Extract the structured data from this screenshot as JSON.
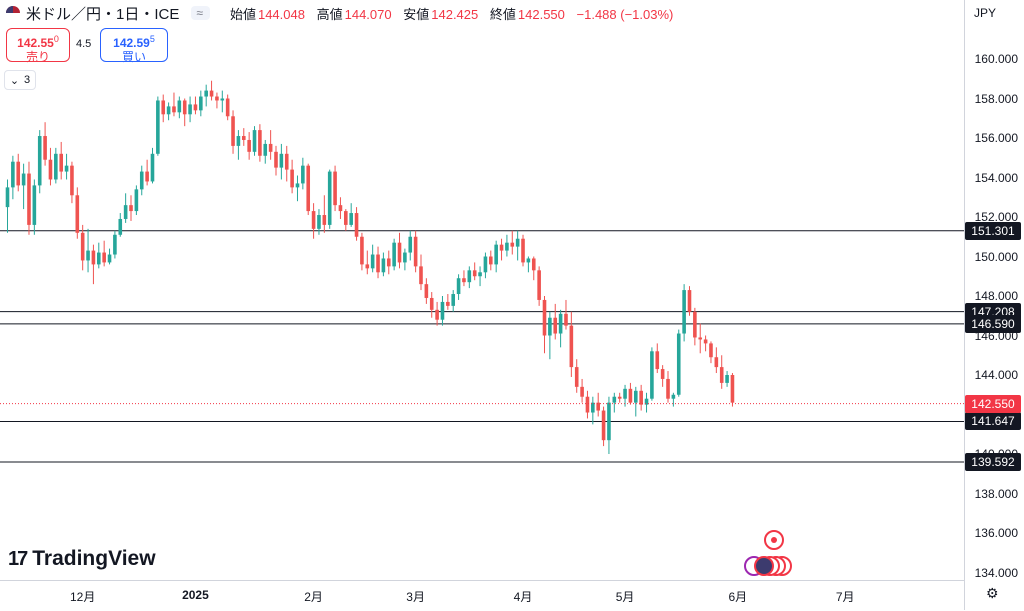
{
  "header": {
    "symbol": "米ドル／円・1日・ICE",
    "pill": "≈",
    "open_label": "始値",
    "open": "144.048",
    "high_label": "高値",
    "high": "144.070",
    "low_label": "安値",
    "low": "142.425",
    "close_label": "終値",
    "close": "142.550",
    "change": "−1.488 (−1.03%)"
  },
  "trade": {
    "sell_price": "142.55",
    "sell_sup": "0",
    "sell_label": "売り",
    "spread": "4.5",
    "buy_price": "142.59",
    "buy_sup": "5",
    "buy_label": "買い"
  },
  "indicator_count": "3",
  "currency": "JPY",
  "brand": "TradingView",
  "colors": {
    "up": "#26a69a",
    "down": "#ef5350",
    "line": "#131722",
    "price": "#f23645"
  },
  "chart_data": {
    "type": "candlestick",
    "title": "米ドル／円・1日・ICE",
    "ylim": [
      133.7,
      162.9
    ],
    "y_ticks": [
      "160.000",
      "158.000",
      "156.000",
      "154.000",
      "152.000",
      "150.000",
      "148.000",
      "146.000",
      "144.000",
      "140.000",
      "138.000",
      "136.000",
      "134.000"
    ],
    "x_ticks": [
      {
        "label": "12月",
        "index": 14,
        "bold": false
      },
      {
        "label": "2025",
        "index": 35,
        "bold": true
      },
      {
        "label": "2月",
        "index": 57,
        "bold": false
      },
      {
        "label": "3月",
        "index": 76,
        "bold": false
      },
      {
        "label": "4月",
        "index": 96,
        "bold": false
      },
      {
        "label": "5月",
        "index": 115,
        "bold": false
      },
      {
        "label": "6月",
        "index": 136,
        "bold": false
      },
      {
        "label": "7月",
        "index": 156,
        "bold": false
      }
    ],
    "hlines": [
      151.301,
      147.208,
      146.59,
      141.647,
      139.592
    ],
    "last_price": 142.55,
    "candles": [
      [
        152.5,
        153.9,
        151.2,
        153.5
      ],
      [
        153.5,
        155.1,
        152.9,
        154.8
      ],
      [
        154.8,
        155.2,
        153.3,
        153.6
      ],
      [
        153.6,
        154.7,
        152.4,
        154.2
      ],
      [
        154.2,
        154.8,
        151.1,
        151.6
      ],
      [
        151.6,
        153.9,
        151.1,
        153.6
      ],
      [
        153.6,
        156.4,
        153.2,
        156.1
      ],
      [
        156.1,
        156.8,
        154.6,
        154.9
      ],
      [
        154.9,
        155.5,
        153.6,
        153.9
      ],
      [
        153.9,
        155.5,
        153.7,
        155.2
      ],
      [
        155.2,
        155.8,
        153.9,
        154.3
      ],
      [
        154.3,
        155.2,
        153.9,
        154.6
      ],
      [
        154.6,
        154.8,
        152.7,
        153.1
      ],
      [
        153.1,
        153.5,
        150.9,
        151.2
      ],
      [
        151.2,
        151.6,
        149.3,
        149.8
      ],
      [
        149.8,
        151.4,
        149.2,
        150.3
      ],
      [
        150.3,
        150.6,
        148.6,
        149.6
      ],
      [
        149.6,
        150.7,
        149.4,
        150.2
      ],
      [
        150.2,
        150.8,
        149.5,
        149.7
      ],
      [
        149.7,
        150.4,
        149.6,
        150.1
      ],
      [
        150.1,
        151.3,
        149.9,
        151.1
      ],
      [
        151.1,
        152.2,
        151.0,
        151.9
      ],
      [
        151.9,
        153.2,
        151.7,
        152.6
      ],
      [
        152.6,
        153.1,
        151.8,
        152.3
      ],
      [
        152.3,
        153.6,
        152.1,
        153.4
      ],
      [
        153.4,
        154.6,
        153.1,
        154.3
      ],
      [
        154.3,
        154.9,
        153.6,
        153.8
      ],
      [
        153.8,
        155.5,
        153.7,
        155.2
      ],
      [
        155.2,
        158.1,
        155.1,
        157.9
      ],
      [
        157.9,
        158.2,
        156.8,
        157.2
      ],
      [
        157.2,
        157.8,
        156.9,
        157.6
      ],
      [
        157.6,
        158.3,
        157.1,
        157.3
      ],
      [
        157.3,
        158.1,
        157.0,
        157.9
      ],
      [
        157.9,
        158.0,
        156.6,
        157.2
      ],
      [
        157.2,
        158.1,
        156.8,
        157.7
      ],
      [
        157.7,
        158.1,
        157.2,
        157.4
      ],
      [
        157.4,
        158.4,
        157.1,
        158.1
      ],
      [
        158.1,
        158.7,
        157.6,
        158.4
      ],
      [
        158.4,
        158.9,
        157.9,
        158.1
      ],
      [
        158.1,
        158.3,
        157.5,
        157.9
      ],
      [
        157.9,
        158.4,
        157.3,
        158.0
      ],
      [
        158.0,
        158.2,
        156.9,
        157.1
      ],
      [
        157.1,
        157.4,
        155.2,
        155.6
      ],
      [
        155.6,
        156.4,
        154.9,
        156.1
      ],
      [
        156.1,
        156.5,
        155.6,
        155.9
      ],
      [
        155.9,
        156.3,
        154.9,
        155.3
      ],
      [
        155.3,
        156.6,
        155.1,
        156.4
      ],
      [
        156.4,
        156.7,
        154.8,
        155.1
      ],
      [
        155.1,
        155.9,
        154.7,
        155.7
      ],
      [
        155.7,
        156.4,
        154.9,
        155.3
      ],
      [
        155.3,
        155.6,
        154.1,
        154.5
      ],
      [
        154.5,
        155.7,
        153.9,
        155.2
      ],
      [
        155.2,
        155.6,
        153.8,
        154.4
      ],
      [
        154.4,
        154.9,
        153.2,
        153.5
      ],
      [
        153.5,
        154.1,
        152.8,
        153.7
      ],
      [
        153.7,
        155.0,
        153.4,
        154.6
      ],
      [
        154.6,
        154.7,
        152.1,
        152.3
      ],
      [
        152.3,
        152.7,
        150.9,
        151.4
      ],
      [
        151.4,
        152.4,
        151.1,
        152.1
      ],
      [
        152.1,
        153.1,
        151.2,
        151.6
      ],
      [
        151.6,
        154.4,
        151.4,
        154.3
      ],
      [
        154.3,
        154.6,
        152.3,
        152.6
      ],
      [
        152.6,
        153.0,
        151.9,
        152.3
      ],
      [
        152.3,
        152.4,
        151.3,
        151.6
      ],
      [
        151.6,
        152.7,
        151.5,
        152.2
      ],
      [
        152.2,
        152.5,
        150.8,
        151.0
      ],
      [
        151.0,
        151.2,
        149.3,
        149.6
      ],
      [
        149.6,
        150.3,
        149.1,
        149.4
      ],
      [
        149.4,
        150.6,
        149.2,
        150.1
      ],
      [
        150.1,
        150.5,
        148.9,
        149.2
      ],
      [
        149.2,
        150.2,
        149.0,
        149.9
      ],
      [
        149.9,
        150.3,
        149.1,
        149.5
      ],
      [
        149.5,
        150.9,
        149.3,
        150.7
      ],
      [
        150.7,
        151.2,
        149.4,
        149.7
      ],
      [
        149.7,
        150.4,
        149.3,
        150.2
      ],
      [
        150.2,
        151.3,
        149.8,
        151.0
      ],
      [
        151.0,
        151.3,
        149.2,
        149.5
      ],
      [
        149.5,
        150.1,
        148.3,
        148.6
      ],
      [
        148.6,
        148.9,
        147.6,
        147.9
      ],
      [
        147.9,
        148.2,
        146.9,
        147.3
      ],
      [
        147.3,
        147.7,
        146.5,
        146.8
      ],
      [
        146.8,
        148.0,
        146.5,
        147.7
      ],
      [
        147.7,
        148.1,
        147.3,
        147.5
      ],
      [
        147.5,
        148.3,
        147.2,
        148.1
      ],
      [
        148.1,
        149.1,
        147.8,
        148.9
      ],
      [
        148.9,
        149.3,
        148.5,
        148.7
      ],
      [
        148.7,
        149.5,
        148.4,
        149.3
      ],
      [
        149.3,
        149.7,
        148.8,
        149.0
      ],
      [
        149.0,
        149.5,
        148.5,
        149.2
      ],
      [
        149.2,
        150.2,
        148.9,
        150.0
      ],
      [
        150.0,
        150.3,
        149.3,
        149.6
      ],
      [
        149.6,
        150.8,
        149.2,
        150.6
      ],
      [
        150.6,
        150.9,
        149.8,
        150.3
      ],
      [
        150.3,
        151.1,
        150.0,
        150.7
      ],
      [
        150.7,
        151.3,
        150.1,
        150.5
      ],
      [
        150.5,
        151.3,
        149.8,
        150.9
      ],
      [
        150.9,
        151.1,
        149.5,
        149.7
      ],
      [
        149.7,
        150.0,
        149.2,
        149.9
      ],
      [
        149.9,
        150.0,
        148.8,
        149.3
      ],
      [
        149.3,
        149.5,
        147.5,
        147.8
      ],
      [
        147.8,
        148.0,
        145.1,
        146.0
      ],
      [
        146.0,
        147.2,
        144.8,
        146.9
      ],
      [
        146.9,
        147.6,
        145.8,
        146.1
      ],
      [
        146.1,
        147.3,
        145.4,
        147.1
      ],
      [
        147.1,
        147.8,
        146.3,
        146.5
      ],
      [
        146.5,
        147.2,
        143.9,
        144.4
      ],
      [
        144.4,
        144.8,
        143.1,
        143.4
      ],
      [
        143.4,
        143.8,
        142.6,
        142.9
      ],
      [
        142.9,
        143.2,
        141.8,
        142.1
      ],
      [
        142.1,
        142.9,
        141.5,
        142.6
      ],
      [
        142.6,
        143.1,
        141.9,
        142.2
      ],
      [
        142.2,
        142.4,
        140.4,
        140.7
      ],
      [
        140.7,
        142.9,
        140.0,
        142.6
      ],
      [
        142.6,
        143.1,
        142.1,
        142.9
      ],
      [
        142.9,
        143.1,
        142.6,
        142.8
      ],
      [
        142.8,
        143.5,
        142.4,
        143.3
      ],
      [
        143.3,
        143.6,
        142.5,
        142.6
      ],
      [
        142.6,
        143.4,
        141.9,
        143.2
      ],
      [
        143.2,
        143.5,
        142.2,
        142.5
      ],
      [
        142.5,
        143.1,
        142.1,
        142.8
      ],
      [
        142.8,
        145.4,
        142.7,
        145.2
      ],
      [
        145.2,
        145.6,
        144.1,
        144.3
      ],
      [
        144.3,
        144.5,
        143.4,
        143.8
      ],
      [
        143.8,
        144.2,
        142.6,
        142.8
      ],
      [
        142.8,
        143.1,
        142.4,
        143.0
      ],
      [
        143.0,
        146.3,
        142.9,
        146.1
      ],
      [
        146.1,
        148.6,
        145.7,
        148.3
      ],
      [
        148.3,
        148.5,
        147.0,
        147.2
      ],
      [
        147.2,
        147.4,
        145.5,
        145.9
      ],
      [
        145.9,
        146.6,
        145.1,
        145.8
      ],
      [
        145.8,
        146.0,
        145.2,
        145.6
      ],
      [
        145.6,
        145.7,
        144.6,
        144.9
      ],
      [
        144.9,
        145.4,
        144.1,
        144.4
      ],
      [
        144.4,
        145.0,
        143.3,
        143.6
      ],
      [
        143.6,
        144.2,
        143.4,
        144.0
      ],
      [
        144.0,
        144.1,
        142.4,
        142.6
      ]
    ]
  }
}
